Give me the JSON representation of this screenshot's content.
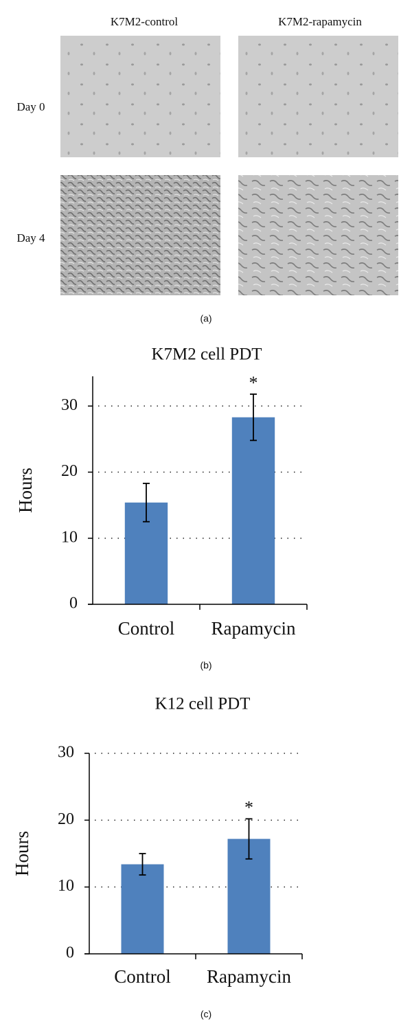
{
  "panel_a": {
    "columns": [
      "K7M2-control",
      "K7M2-rapamycin"
    ],
    "rows": [
      "Day 0",
      "Day 4"
    ],
    "caption": "(a)"
  },
  "chart_data": [
    {
      "type": "bar",
      "title": "K7M2 cell PDT",
      "y_label": "Hours",
      "categories": [
        "Control",
        "Rapamycin"
      ],
      "values": [
        15.4,
        28.3
      ],
      "errors": [
        2.9,
        3.5
      ],
      "significance": [
        null,
        "*"
      ],
      "color": "#4f81bd",
      "ylim": [
        0,
        34.5
      ],
      "yticks": [
        0,
        10,
        20,
        30
      ],
      "grid": true,
      "caption": "(b)"
    },
    {
      "type": "bar",
      "title": "K12 cell PDT",
      "y_label": "Hours",
      "categories": [
        "Control",
        "Rapamycin"
      ],
      "values": [
        13.4,
        17.2
      ],
      "errors": [
        1.6,
        3.0
      ],
      "significance": [
        null,
        "*"
      ],
      "color": "#4f81bd",
      "ylim": [
        0,
        30
      ],
      "yticks": [
        0,
        10,
        20,
        30
      ],
      "grid": true,
      "caption": "(c)"
    }
  ]
}
